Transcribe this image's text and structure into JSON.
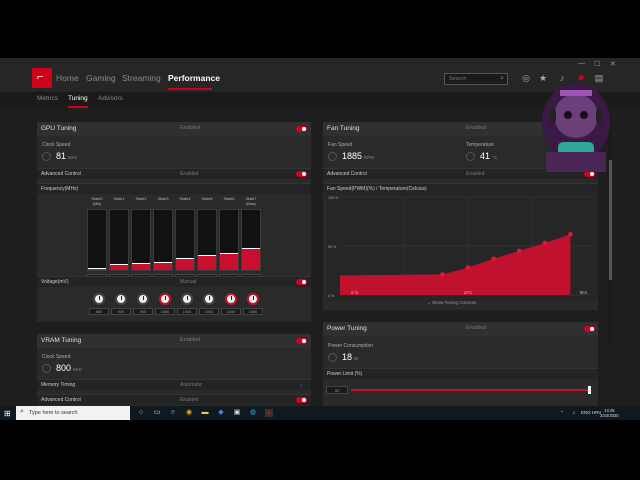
{
  "nav": {
    "tabs": [
      "Home",
      "Gaming",
      "Streaming",
      "Performance"
    ],
    "active": "Performance",
    "search_placeholder": "Search",
    "subtabs": [
      "Metrics",
      "Tuning",
      "Advisors"
    ],
    "active_subtab": "Tuning"
  },
  "gpu_tuning": {
    "title": "GPU Tuning",
    "status": "Enabled",
    "clock_label": "Clock Speed",
    "clock_value": "81",
    "clock_unit": "MHz",
    "advanced_label": "Advanced Control",
    "advanced_status": "Enabled",
    "freq_label": "Frequency(MHz)",
    "states": [
      {
        "label": "State0 (Min)",
        "value": "852",
        "level": 0.03
      },
      {
        "label": "State1",
        "value": "1000",
        "level": 0.1
      },
      {
        "label": "State2",
        "value": "1050",
        "level": 0.11
      },
      {
        "label": "State3",
        "value": "1100",
        "level": 0.14
      },
      {
        "label": "State4",
        "value": "1200",
        "level": 0.2
      },
      {
        "label": "State5",
        "value": "1300",
        "level": 0.25
      },
      {
        "label": "State6",
        "value": "1359",
        "level": 0.28
      },
      {
        "label": "State7 (Max)",
        "value": "1471",
        "level": 0.36
      }
    ],
    "voltage_label": "Voltage(mV)",
    "voltage_mode": "Manual",
    "voltages": [
      "800",
      "900",
      "950",
      "1000",
      "1000",
      "1000",
      "1000",
      "1000"
    ],
    "voltage_red": [
      false,
      false,
      false,
      true,
      false,
      false,
      true,
      true
    ]
  },
  "fan_tuning": {
    "title": "Fan Tuning",
    "status": "Enabled",
    "speed_label": "Fan Speed",
    "speed_value": "1885",
    "speed_unit": "RPM",
    "temp_label": "Temperature",
    "temp_value": "41",
    "temp_unit": "°C",
    "advanced_label": "Advanced Control",
    "advanced_status": "Enabled",
    "chart_title": "Fan Speed(PWM)(%) / Temperature(Celsius)",
    "show_controls": "Show Tuning Controls"
  },
  "chart_data": {
    "type": "area",
    "title": "Fan Speed(PWM)(%) / Temperature(Celsius)",
    "xlabel": "",
    "ylabel": "",
    "y_ticks": [
      "100 %",
      "50 %",
      "0 %"
    ],
    "x_ticks": [
      "0 °C",
      "37°C",
      "75°C"
    ],
    "x": [
      0,
      40,
      50,
      60,
      70,
      80,
      90
    ],
    "y": [
      20,
      21,
      28,
      37,
      45,
      53,
      62
    ],
    "ylim": [
      0,
      100
    ],
    "grid": true
  },
  "vram_tuning": {
    "title": "VRAM Tuning",
    "status": "Enabled",
    "clock_label": "Clock Speed",
    "clock_value": "800",
    "clock_unit": "MHz",
    "timing_label": "Memory Timing",
    "timing_value": "Automatic",
    "advanced_label": "Advanced Control",
    "advanced_status": "Enabled"
  },
  "power_tuning": {
    "title": "Power Tuning",
    "status": "Enabled",
    "consumption_label": "Power Consumption",
    "consumption_value": "18",
    "consumption_unit": "W",
    "limit_label": "Power Limit (%)",
    "limit_value": "50",
    "limit_level": 1.0
  },
  "taskbar": {
    "search_placeholder": "Type here to search",
    "tray": "ENG",
    "tray2": "HRV",
    "time": "13:45",
    "date": "3/24/2020"
  },
  "colors": {
    "accent": "#d0021b",
    "panel": "#2a2a2a",
    "background": "#1e1e1e"
  }
}
